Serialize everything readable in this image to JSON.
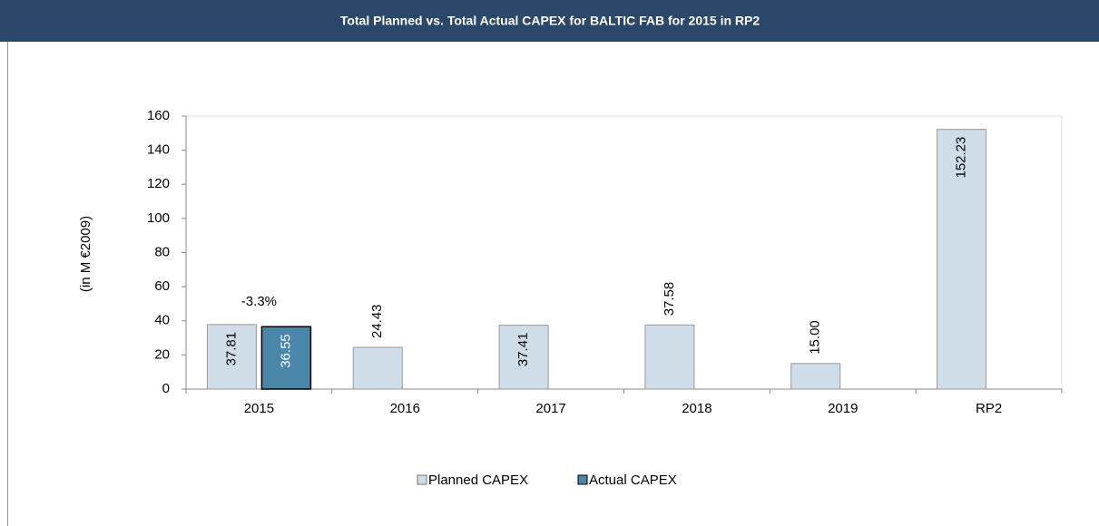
{
  "chart_data": {
    "type": "bar",
    "title": "Total Planned vs. Total Actual CAPEX for BALTIC FAB for 2015 in RP2",
    "y_label": "(in M €2009)",
    "categories": [
      "2015",
      "2016",
      "2017",
      "2018",
      "2019",
      "RP2"
    ],
    "series": [
      {
        "name": "Planned CAPEX",
        "color": "#cfdde8",
        "values": [
          37.81,
          24.43,
          37.41,
          37.58,
          15,
          152.23
        ],
        "value_labels": [
          "37.81",
          "24.43",
          "37.41",
          "37.58",
          "15.00",
          "152.23"
        ]
      },
      {
        "name": "Actual CAPEX",
        "color": "#4a86a8",
        "values": [
          36.55,
          null,
          null,
          null,
          null,
          null
        ],
        "value_labels": [
          "36.55",
          null,
          null,
          null,
          null,
          null
        ]
      }
    ],
    "annotations": [
      {
        "text": "-3.3%",
        "category": "2015"
      }
    ],
    "ylim": [
      0,
      160
    ],
    "yticks": [
      0,
      20,
      40,
      60,
      80,
      100,
      120,
      140,
      160
    ],
    "grid": false,
    "legend": "bottom"
  }
}
